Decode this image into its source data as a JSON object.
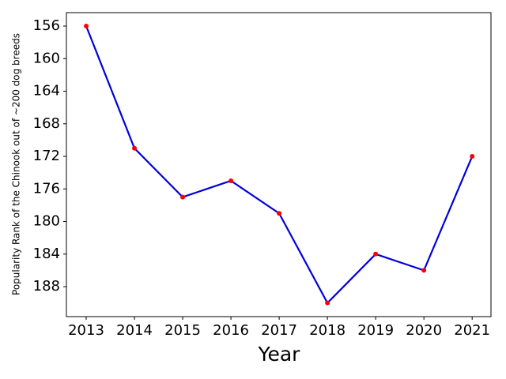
{
  "chart_data": {
    "type": "line",
    "x_label": "Year",
    "y_label": "Popularity Rank of the Chinook out of ~200 dog breeds",
    "x": [
      2013,
      2014,
      2015,
      2016,
      2017,
      2018,
      2019,
      2020,
      2021
    ],
    "series": [
      {
        "color": "#0000dd",
        "marker_color": "red",
        "values": [
          156,
          171,
          177,
          175,
          179,
          190,
          184,
          186,
          172
        ]
      }
    ],
    "xlim": [
      2012.59,
      2021.39
    ],
    "xticks": [
      2013,
      2014,
      2015,
      2016,
      2017,
      2018,
      2019,
      2020,
      2021
    ],
    "ylim": [
      191.68,
      154.35
    ],
    "yticks": [
      156,
      160,
      164,
      168,
      172,
      176,
      180,
      184,
      188
    ],
    "inverted_y": true,
    "grid": false
  }
}
